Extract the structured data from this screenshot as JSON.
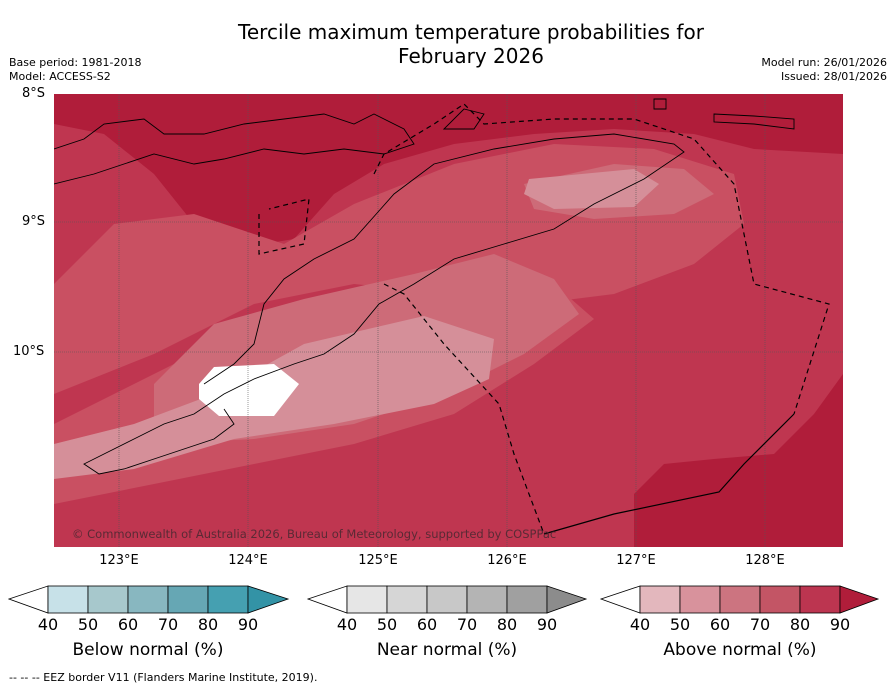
{
  "header": {
    "title_line1": "Tercile maximum temperature probabilities for",
    "title_line2": "February 2026",
    "base_period": "Base period: 1981-2018",
    "model": "Model: ACCESS-S2",
    "model_run": "Model run: 26/01/2026",
    "issued": "Issued: 28/01/2026"
  },
  "map": {
    "lat_labels": [
      "8°S",
      "9°S",
      "10°S"
    ],
    "lon_labels": [
      "123°E",
      "124°E",
      "125°E",
      "126°E",
      "127°E",
      "128°E"
    ],
    "copyright": "© Commonwealth of Australia 2026, Bureau of Meteorology, supported by COSPPac",
    "colors": {
      "above_90": "#b01d3a",
      "above_80": "#bf3650",
      "above_70": "#c95062",
      "above_60": "#cd6b78",
      "above_50": "#d58f99",
      "above_40": "#e8bcc2"
    }
  },
  "legends": [
    {
      "label": "Below normal (%)",
      "ticks": [
        "40",
        "50",
        "60",
        "70",
        "80",
        "90"
      ],
      "colors": [
        "#c7e1e8",
        "#a7c8cc",
        "#88b7c0",
        "#66a7b4",
        "#45a0b1",
        "#3393a6"
      ]
    },
    {
      "label": "Near normal (%)",
      "ticks": [
        "40",
        "50",
        "60",
        "70",
        "80",
        "90"
      ],
      "colors": [
        "#e6e6e6",
        "#d6d6d6",
        "#c8c8c8",
        "#b4b4b4",
        "#a0a0a0",
        "#8c8c8c"
      ]
    },
    {
      "label": "Above normal (%)",
      "ticks": [
        "40",
        "50",
        "60",
        "70",
        "80",
        "90"
      ],
      "colors": [
        "#e3b7bd",
        "#d8929c",
        "#cc7480",
        "#c35565",
        "#bc3550",
        "#b01d3a"
      ]
    }
  ],
  "footer": {
    "eez_note": "--  --  -- EEZ border V11 (Flanders Marine Institute, 2019)."
  }
}
